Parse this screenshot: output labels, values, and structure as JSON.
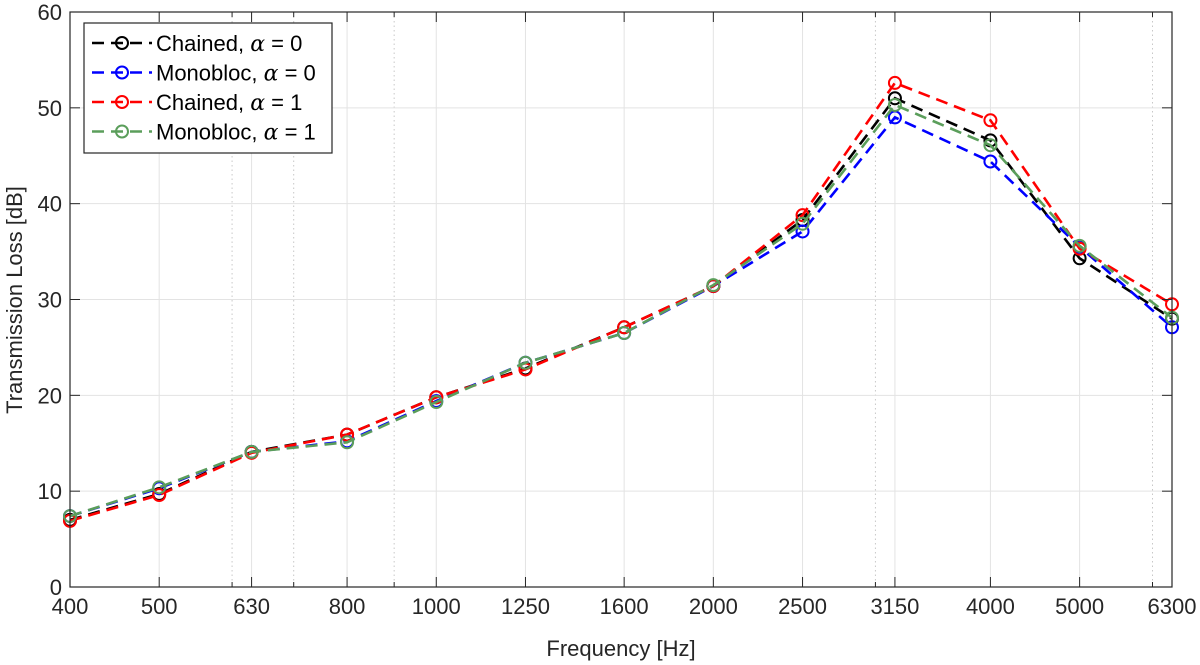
{
  "chart_data": {
    "type": "line",
    "xlabel": "Frequency [Hz]",
    "ylabel": "Transmission Loss [dB]",
    "ylim": [
      0,
      60
    ],
    "yticks": [
      0,
      10,
      20,
      30,
      40,
      50,
      60
    ],
    "x_scale": "log",
    "xlim": [
      400,
      6300
    ],
    "categories": [
      "400",
      "500",
      "630",
      "800",
      "1000",
      "1250",
      "1600",
      "2000",
      "2500",
      "3150",
      "4000",
      "5000",
      "6300"
    ],
    "x": [
      400,
      500,
      630,
      800,
      1000,
      1250,
      1600,
      2000,
      2500,
      3150,
      4000,
      5000,
      6300
    ],
    "minor_x_gridlines": [
      600,
      700,
      900,
      3000,
      6000
    ],
    "grid": true,
    "legend_position": "top-left",
    "series": [
      {
        "legend_prefix": "Chained, ",
        "legend_symbol": "α",
        "legend_suffix": " = 0",
        "color": "#000000",
        "values": [
          7.0,
          9.7,
          14.1,
          15.9,
          19.8,
          22.8,
          27.1,
          31.4,
          38.3,
          51.0,
          46.6,
          34.3,
          28.0
        ]
      },
      {
        "legend_prefix": "Monobloc, ",
        "legend_symbol": "α",
        "legend_suffix": " = 0",
        "color": "#0000ff",
        "values": [
          7.4,
          10.3,
          14.1,
          15.2,
          19.4,
          23.4,
          26.5,
          31.4,
          37.1,
          49.0,
          44.4,
          35.5,
          27.1
        ]
      },
      {
        "legend_prefix": "Chained, ",
        "legend_symbol": "α",
        "legend_suffix": " = 1",
        "color": "#ff0000",
        "values": [
          6.9,
          9.6,
          14.0,
          15.9,
          19.8,
          22.7,
          27.1,
          31.4,
          38.8,
          52.6,
          48.7,
          35.3,
          29.5
        ]
      },
      {
        "legend_prefix": "Monobloc, ",
        "legend_symbol": "α",
        "legend_suffix": " = 1",
        "color": "#5b9e5b",
        "values": [
          7.4,
          10.4,
          14.1,
          15.1,
          19.3,
          23.4,
          26.5,
          31.5,
          37.9,
          50.3,
          46.1,
          35.6,
          28.1
        ]
      }
    ]
  }
}
